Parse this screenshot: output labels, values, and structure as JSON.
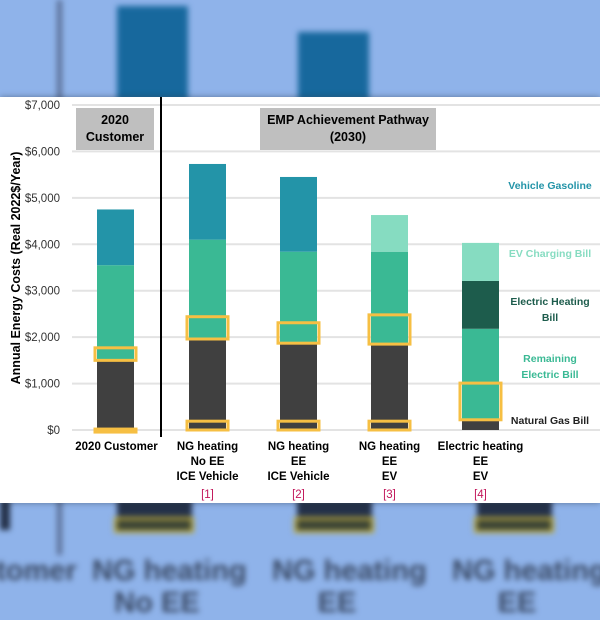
{
  "background": {
    "blurred_labels": [
      "stomer",
      "NG heating",
      "No EE",
      "NG heating",
      "EE",
      "NG heating",
      "EE"
    ]
  },
  "colors": {
    "natural_gas": "#404040",
    "remaining_electric": "#3ab994",
    "electric_heating": "#1d5c4c",
    "ev_charging": "#86dcc1",
    "vehicle_gasoline": "#2394a8",
    "highlight": "#f6bf43",
    "annotation": "#c2185b",
    "group_box": "#bfbfbf",
    "gridline": "#e3e3e3"
  },
  "chart_data": {
    "type": "bar",
    "stacked": true,
    "title": "",
    "xlabel": "",
    "ylabel": "Annual Energy Costs (Real 2022$/Year)",
    "ylim": [
      0,
      7000
    ],
    "yticks": [
      0,
      1000,
      2000,
      3000,
      4000,
      5000,
      6000,
      7000
    ],
    "ytick_labels": [
      "$0",
      "$1,000",
      "$2,000",
      "$3,000",
      "$4,000",
      "$5,000",
      "$6,000",
      "$7,000"
    ],
    "grid": true,
    "legend_placement": "right",
    "group_labels": [
      {
        "lines": [
          "2020",
          "Customer"
        ],
        "covers": [
          0
        ]
      },
      {
        "lines": [
          "EMP Achievement Pathway",
          "(2030)"
        ],
        "covers": [
          1,
          2,
          3,
          4
        ]
      }
    ],
    "categories": [
      {
        "lines": [
          "2020 Customer"
        ],
        "note": ""
      },
      {
        "lines": [
          "NG heating",
          "No EE",
          "ICE Vehicle"
        ],
        "note": "[1]"
      },
      {
        "lines": [
          "NG heating",
          "EE",
          "ICE Vehicle"
        ],
        "note": "[2]"
      },
      {
        "lines": [
          "NG heating",
          "EE",
          "EV"
        ],
        "note": "[3]"
      },
      {
        "lines": [
          "Electric heating",
          "EE",
          "EV"
        ],
        "note": "[4]"
      }
    ],
    "series": [
      {
        "name": "Natural Gas Bill",
        "key": "natural_gas",
        "values": [
          1500,
          1960,
          1870,
          1850,
          220
        ]
      },
      {
        "name": "Remaining Electric Bill",
        "key": "remaining_electric",
        "values": [
          2050,
          2140,
          1970,
          1990,
          1960
        ]
      },
      {
        "name": "Electric Heating Bill",
        "key": "electric_heating",
        "values": [
          0,
          0,
          0,
          0,
          1030
        ]
      },
      {
        "name": "EV Charging Bill",
        "key": "ev_charging",
        "values": [
          0,
          0,
          0,
          790,
          820
        ]
      },
      {
        "name": "Vehicle Gasoline",
        "key": "vehicle_gasoline",
        "values": [
          1200,
          1630,
          1610,
          0,
          0
        ]
      }
    ],
    "legend": [
      {
        "label": "Vehicle Gasoline",
        "key": "vehicle_gasoline"
      },
      {
        "label": "EV Charging Bill",
        "key": "ev_charging"
      },
      {
        "label": "Electric Heating Bill",
        "key": "electric_heating"
      },
      {
        "label": "Remaining Electric Bill",
        "key": "remaining_electric"
      },
      {
        "label": "Natural Gas Bill",
        "key": "natural_gas"
      }
    ],
    "highlights": [
      {
        "bar": 0,
        "range": [
          1500,
          1770
        ]
      },
      {
        "bar": 0,
        "range": [
          0,
          20
        ]
      },
      {
        "bar": 1,
        "range": [
          1960,
          2440
        ]
      },
      {
        "bar": 1,
        "range": [
          0,
          190
        ]
      },
      {
        "bar": 2,
        "range": [
          1870,
          2310
        ]
      },
      {
        "bar": 2,
        "range": [
          0,
          190
        ]
      },
      {
        "bar": 3,
        "range": [
          1850,
          2480
        ]
      },
      {
        "bar": 3,
        "range": [
          0,
          190
        ]
      },
      {
        "bar": 4,
        "range": [
          220,
          1010
        ]
      }
    ]
  }
}
